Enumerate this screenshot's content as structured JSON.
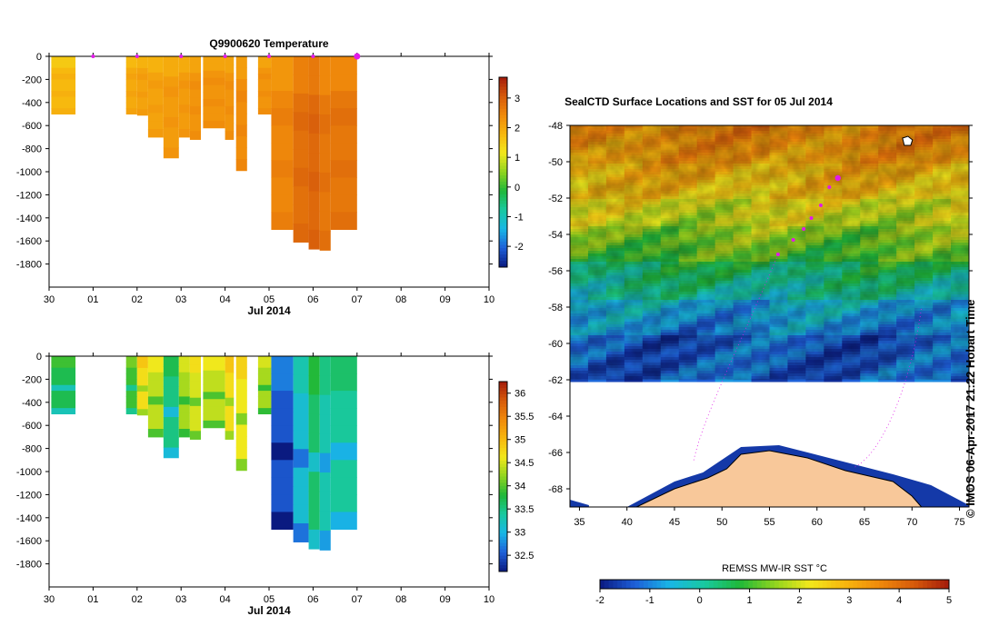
{
  "chart_data": [
    {
      "type": "heatmap",
      "id": "temperature",
      "title": "Q9900620  Temperature",
      "xlabel": "Jul 2014",
      "x_ticks": [
        "30",
        "01",
        "02",
        "03",
        "04",
        "05",
        "06",
        "07",
        "08",
        "09",
        "10"
      ],
      "xlim": [
        0,
        10
      ],
      "y_ticks": [
        0,
        -200,
        -400,
        -600,
        -800,
        -1000,
        -1200,
        -1400,
        -1600,
        -1800
      ],
      "ylim": [
        -2000,
        0
      ],
      "colorbar": {
        "ticks": [
          -2,
          -1,
          0,
          1,
          2,
          3
        ],
        "range": [
          -2.7,
          3.7
        ],
        "colors": [
          "#0a1a80",
          "#1e5fd8",
          "#19b6e6",
          "#19c9a0",
          "#1fb83a",
          "#8fd41f",
          "#f2e81c",
          "#f7b70e",
          "#f08a0b",
          "#d65a0b",
          "#a41b0b"
        ]
      },
      "profiles": [
        {
          "x": 0.05,
          "w": 0.55,
          "bottom": -500,
          "value": 1.8
        },
        {
          "x": 1.75,
          "w": 0.25,
          "bottom": -500,
          "value": 2.0
        },
        {
          "x": 2.0,
          "w": 0.25,
          "bottom": -510,
          "value": 2.1
        },
        {
          "x": 2.25,
          "w": 0.35,
          "bottom": -700,
          "value": 2.1
        },
        {
          "x": 2.6,
          "w": 0.35,
          "bottom": -880,
          "value": 2.2
        },
        {
          "x": 2.95,
          "w": 0.25,
          "bottom": -700,
          "value": 2.2
        },
        {
          "x": 3.2,
          "w": 0.25,
          "bottom": -720,
          "value": 2.3
        },
        {
          "x": 3.5,
          "w": 0.5,
          "bottom": -620,
          "value": 2.3
        },
        {
          "x": 4.0,
          "w": 0.2,
          "bottom": -720,
          "value": 2.3
        },
        {
          "x": 4.25,
          "w": 0.25,
          "bottom": -990,
          "value": 2.4
        },
        {
          "x": 4.75,
          "w": 0.3,
          "bottom": -500,
          "value": 2.3
        },
        {
          "x": 5.05,
          "w": 0.5,
          "bottom": -1500,
          "value": 2.5
        },
        {
          "x": 5.55,
          "w": 0.35,
          "bottom": -1610,
          "value": 2.8
        },
        {
          "x": 5.9,
          "w": 0.25,
          "bottom": -1670,
          "value": 2.9
        },
        {
          "x": 6.15,
          "w": 0.25,
          "bottom": -1680,
          "value": 2.7
        },
        {
          "x": 6.4,
          "w": 0.6,
          "bottom": -1500,
          "value": 2.7
        }
      ],
      "markers": [
        1,
        2,
        3,
        4,
        5,
        6,
        7
      ]
    },
    {
      "type": "heatmap",
      "id": "salinity",
      "title": "",
      "xlabel": "Jul 2014",
      "x_ticks": [
        "30",
        "01",
        "02",
        "03",
        "04",
        "05",
        "06",
        "07",
        "08",
        "09",
        "10"
      ],
      "xlim": [
        0,
        10
      ],
      "y_ticks": [
        0,
        -200,
        -400,
        -600,
        -800,
        -1000,
        -1200,
        -1400,
        -1600,
        -1800
      ],
      "ylim": [
        -2000,
        0
      ],
      "colorbar": {
        "ticks": [
          32.5,
          33,
          33.5,
          34,
          34.5,
          35,
          35.5,
          36
        ],
        "range": [
          32.15,
          36.25
        ],
        "colors": [
          "#0a1a80",
          "#1e5fd8",
          "#19b6e6",
          "#19c9a0",
          "#1fb83a",
          "#8fd41f",
          "#f2e81c",
          "#f7b70e",
          "#f08a0b",
          "#d65a0b",
          "#a41b0b"
        ]
      },
      "profiles": [
        {
          "x": 0.05,
          "w": 0.55,
          "bottom": -500,
          "value": 33.6
        },
        {
          "x": 1.75,
          "w": 0.25,
          "bottom": -500,
          "value": 33.8
        },
        {
          "x": 2.0,
          "w": 0.25,
          "bottom": -510,
          "value": 34.6
        },
        {
          "x": 2.25,
          "w": 0.35,
          "bottom": -700,
          "value": 34.3
        },
        {
          "x": 2.6,
          "w": 0.35,
          "bottom": -880,
          "value": 33.4
        },
        {
          "x": 2.95,
          "w": 0.25,
          "bottom": -700,
          "value": 34.2
        },
        {
          "x": 3.2,
          "w": 0.25,
          "bottom": -720,
          "value": 34.4
        },
        {
          "x": 3.5,
          "w": 0.5,
          "bottom": -620,
          "value": 34.3
        },
        {
          "x": 4.0,
          "w": 0.2,
          "bottom": -720,
          "value": 34.6
        },
        {
          "x": 4.25,
          "w": 0.25,
          "bottom": -990,
          "value": 34.5
        },
        {
          "x": 4.75,
          "w": 0.3,
          "bottom": -500,
          "value": 34.2
        },
        {
          "x": 5.05,
          "w": 0.5,
          "bottom": -1500,
          "value": 32.4
        },
        {
          "x": 5.55,
          "w": 0.35,
          "bottom": -1610,
          "value": 33.0
        },
        {
          "x": 5.9,
          "w": 0.25,
          "bottom": -1670,
          "value": 33.5
        },
        {
          "x": 6.15,
          "w": 0.25,
          "bottom": -1680,
          "value": 33.2
        },
        {
          "x": 6.4,
          "w": 0.6,
          "bottom": -1500,
          "value": 33.3
        }
      ]
    },
    {
      "type": "heatmap",
      "id": "sst_map",
      "title": "SealCTD Surface Locations and SST for 05 Jul 2014",
      "xlabel": "",
      "x_ticks": [
        35,
        40,
        45,
        50,
        55,
        60,
        65,
        70,
        75
      ],
      "xlim": [
        34,
        76
      ],
      "y_ticks": [
        -48,
        -50,
        -52,
        -54,
        -56,
        -58,
        -60,
        -62,
        -64,
        -66,
        -68
      ],
      "ylim": [
        -69,
        -48
      ],
      "colorbar": {
        "label": "REMSS MW-IR SST °C",
        "ticks": [
          -2,
          -1,
          0,
          1,
          2,
          3,
          4,
          5
        ],
        "range": [
          -2,
          5
        ],
        "colors": [
          "#0a1a80",
          "#1e5fd8",
          "#19b6e6",
          "#19c9a0",
          "#1fb83a",
          "#8fd41f",
          "#f2e81c",
          "#f7b70e",
          "#f08a0b",
          "#d65a0b",
          "#a41b0b"
        ]
      },
      "sst_bands": [
        {
          "lat_top": -48,
          "lat_bottom": -50,
          "value": 3.6
        },
        {
          "lat_top": -50,
          "lat_bottom": -52,
          "value": 3.0
        },
        {
          "lat_top": -52,
          "lat_bottom": -53.5,
          "value": 2.2
        },
        {
          "lat_top": -53.5,
          "lat_bottom": -55.5,
          "value": 1.6
        },
        {
          "lat_top": -55.5,
          "lat_bottom": -57.5,
          "value": 0.6
        },
        {
          "lat_top": -57.5,
          "lat_bottom": -59.5,
          "value": -0.5
        },
        {
          "lat_top": -59.5,
          "lat_bottom": -62,
          "value": -1.3
        }
      ],
      "seal_positions": [
        {
          "lon": 62.2,
          "lat": -50.9
        },
        {
          "lon": 61.3,
          "lat": -51.4
        },
        {
          "lon": 60.4,
          "lat": -52.4
        },
        {
          "lon": 59.4,
          "lat": -53.1
        },
        {
          "lon": 58.6,
          "lat": -53.7
        },
        {
          "lon": 57.5,
          "lat": -54.3
        },
        {
          "lon": 55.9,
          "lat": -55.1
        }
      ],
      "land_color": "#f8c89a",
      "ocean_color": "#ffffff"
    }
  ],
  "credit": "© IMOS 06-Apr-2017 21:22 Hobart Time"
}
